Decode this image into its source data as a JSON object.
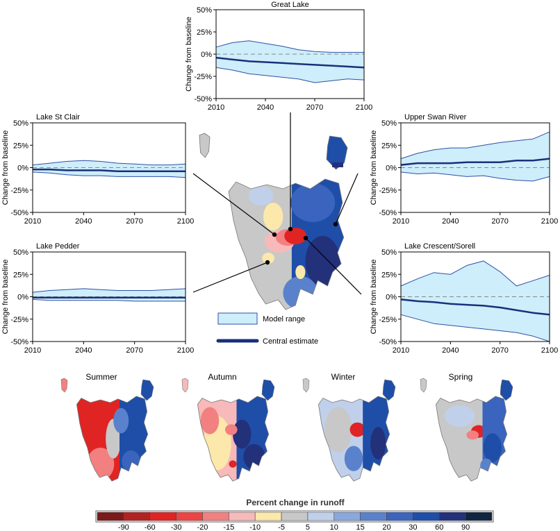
{
  "legend": {
    "model_range_label": "Model range",
    "central_estimate_label": "Central estimate",
    "range_fill": "#cdeefa",
    "range_edge": "#2d4fa6",
    "central_color": "#1b2f7a"
  },
  "colorbar": {
    "title": "Percent change in runoff",
    "tick_labels": [
      "-90",
      "-60",
      "-30",
      "-20",
      "-15",
      "-10",
      "-5",
      "5",
      "10",
      "15",
      "20",
      "30",
      "60",
      "90"
    ],
    "colors": [
      "#7a1a1a",
      "#b22222",
      "#e02424",
      "#ee4444",
      "#f28080",
      "#f7b9b9",
      "#fbe8aa",
      "#c8c8c8",
      "#c0d0ea",
      "#8aa8dc",
      "#5a82cc",
      "#3a64bd",
      "#1e4ea8",
      "#23307a",
      "#10253f"
    ]
  },
  "seasons": [
    "Summer",
    "Autumn",
    "Winter",
    "Spring"
  ],
  "chart_data": [
    {
      "type": "area",
      "title": "Great Lake",
      "ylabel": "Change from baseline",
      "xlim": [
        2010,
        2100
      ],
      "ylim": [
        -50,
        50
      ],
      "x_ticks": [
        "2010",
        "2040",
        "2070",
        "2100"
      ],
      "y_ticks": [
        "50%",
        "25%",
        "0%",
        "-25%",
        "-50%"
      ],
      "x": [
        2010,
        2020,
        2030,
        2040,
        2050,
        2060,
        2070,
        2080,
        2090,
        2100
      ],
      "series": [
        {
          "role": "range_upper",
          "values": [
            8,
            13,
            15,
            12,
            9,
            5,
            3,
            2,
            2,
            2
          ]
        },
        {
          "role": "range_lower",
          "values": [
            -15,
            -18,
            -22,
            -24,
            -26,
            -28,
            -32,
            -30,
            -28,
            -29
          ]
        },
        {
          "name": "Central estimate",
          "values": [
            -4,
            -6,
            -8,
            -9,
            -10,
            -11,
            -12,
            -13,
            -14,
            -15
          ]
        }
      ]
    },
    {
      "type": "area",
      "title": "Lake St Clair",
      "ylabel": "Change from baseline",
      "xlim": [
        2010,
        2100
      ],
      "ylim": [
        -50,
        50
      ],
      "x_ticks": [
        "2010",
        "2040",
        "2070",
        "2100"
      ],
      "y_ticks": [
        "50%",
        "25%",
        "0%",
        "-25%",
        "-50%"
      ],
      "x": [
        2010,
        2020,
        2030,
        2040,
        2050,
        2060,
        2070,
        2080,
        2090,
        2100
      ],
      "series": [
        {
          "role": "range_upper",
          "values": [
            3,
            5,
            7,
            8,
            7,
            5,
            4,
            3,
            3,
            4
          ]
        },
        {
          "role": "range_lower",
          "values": [
            -5,
            -6,
            -8,
            -9,
            -9,
            -10,
            -10,
            -10,
            -10,
            -11
          ]
        },
        {
          "name": "Central estimate",
          "values": [
            -2,
            -2,
            -3,
            -3,
            -3,
            -4,
            -4,
            -4,
            -4,
            -4
          ]
        }
      ]
    },
    {
      "type": "area",
      "title": "Upper Swan River",
      "ylabel": "Change from baseline",
      "xlim": [
        2010,
        2100
      ],
      "ylim": [
        -50,
        50
      ],
      "x_ticks": [
        "2010",
        "2040",
        "2070",
        "2100"
      ],
      "y_ticks": [
        "50%",
        "25%",
        "0%",
        "-25%",
        "-50%"
      ],
      "x": [
        2010,
        2020,
        2030,
        2040,
        2050,
        2060,
        2070,
        2080,
        2090,
        2100
      ],
      "series": [
        {
          "role": "range_upper",
          "values": [
            10,
            16,
            20,
            22,
            22,
            25,
            28,
            30,
            32,
            40
          ]
        },
        {
          "role": "range_lower",
          "values": [
            -5,
            -7,
            -6,
            -8,
            -10,
            -9,
            -12,
            -14,
            -15,
            -10
          ]
        },
        {
          "name": "Central estimate",
          "values": [
            3,
            5,
            5,
            5,
            6,
            6,
            6,
            8,
            8,
            10
          ]
        }
      ]
    },
    {
      "type": "area",
      "title": "Lake Pedder",
      "ylabel": "Change from baseline",
      "xlim": [
        2010,
        2100
      ],
      "ylim": [
        -50,
        50
      ],
      "x_ticks": [
        "2010",
        "2040",
        "2070",
        "2100"
      ],
      "y_ticks": [
        "50%",
        "25%",
        "0%",
        "-25%",
        "-50%"
      ],
      "x": [
        2010,
        2020,
        2030,
        2040,
        2050,
        2060,
        2070,
        2080,
        2090,
        2100
      ],
      "series": [
        {
          "role": "range_upper",
          "values": [
            5,
            7,
            8,
            9,
            8,
            7,
            7,
            7,
            8,
            9
          ]
        },
        {
          "role": "range_lower",
          "values": [
            -3,
            -4,
            -4,
            -4,
            -4,
            -4,
            -5,
            -5,
            -5,
            -5
          ]
        },
        {
          "name": "Central estimate",
          "values": [
            -1,
            -1,
            -1,
            -1,
            -1,
            -1,
            -1,
            -1,
            -1,
            -1
          ]
        }
      ]
    },
    {
      "type": "area",
      "title": "Lake Crescent/Sorell",
      "ylabel": "Change from baseline",
      "xlim": [
        2010,
        2100
      ],
      "ylim": [
        -50,
        50
      ],
      "x_ticks": [
        "2010",
        "2040",
        "2070",
        "2100"
      ],
      "y_ticks": [
        "50%",
        "25%",
        "0%",
        "-25%",
        "-50%"
      ],
      "x": [
        2010,
        2020,
        2030,
        2040,
        2050,
        2060,
        2070,
        2080,
        2090,
        2100
      ],
      "series": [
        {
          "role": "range_upper",
          "values": [
            12,
            20,
            27,
            25,
            35,
            40,
            28,
            12,
            18,
            24
          ]
        },
        {
          "role": "range_lower",
          "values": [
            -20,
            -25,
            -30,
            -32,
            -34,
            -36,
            -38,
            -40,
            -44,
            -50
          ]
        },
        {
          "name": "Central estimate",
          "values": [
            -3,
            -5,
            -6,
            -8,
            -9,
            -10,
            -12,
            -15,
            -18,
            -20
          ]
        }
      ]
    }
  ]
}
